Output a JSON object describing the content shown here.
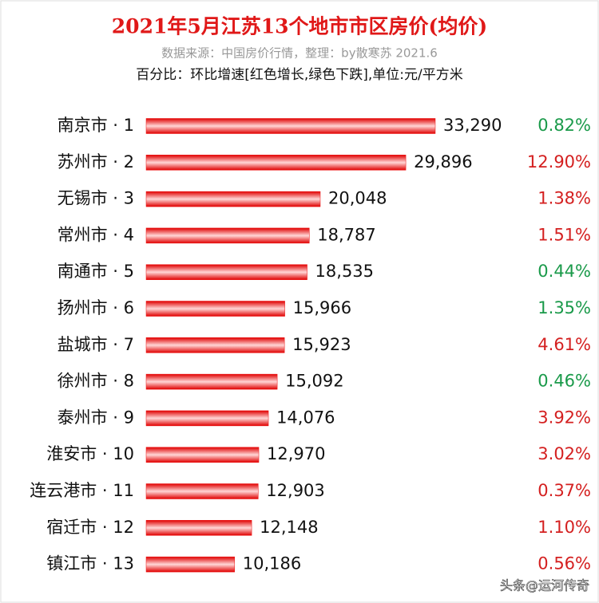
{
  "chart_data": {
    "type": "bar",
    "orientation": "horizontal",
    "title": "2021年5月江苏13个地市市区房价(均价)",
    "subtitle": "数据来源：中国房价行情，整理：by散寒苏  2021.6",
    "note": "百分比：环比增速[红色增长,绿色下跌],单位:元/平方米",
    "categories": [
      "南京市 · 1",
      "苏州市 · 2",
      "无锡市 · 3",
      "常州市 · 4",
      "南通市 · 5",
      "扬州市 · 6",
      "盐城市 · 7",
      "徐州市 · 8",
      "泰州市 · 9",
      "淮安市 · 10",
      "连云港市 · 11",
      "宿迁市 · 12",
      "镇江市 · 13"
    ],
    "color": "#ee1111",
    "values": [
      33290,
      29896,
      20048,
      18787,
      18535,
      15966,
      15923,
      15092,
      14076,
      12970,
      12903,
      12148,
      10186
    ],
    "value_labels": [
      "33,290",
      "29,896",
      "20,048",
      "18,787",
      "18,535",
      "15,966",
      "15,923",
      "15,092",
      "14,076",
      "12,970",
      "12,903",
      "12,148",
      "10,186"
    ],
    "change": {
      "values": [
        0.82,
        12.9,
        1.38,
        1.51,
        0.44,
        1.35,
        4.61,
        0.46,
        3.92,
        3.02,
        0.37,
        1.1,
        0.56
      ],
      "value_labels": [
        "0.82%",
        "12.90%",
        "1.38%",
        "1.51%",
        "0.44%",
        "1.35%",
        "4.61%",
        "0.46%",
        "3.92%",
        "3.02%",
        "0.37%",
        "1.10%",
        "0.56%"
      ],
      "colors": [
        "#1a9a4a",
        "#d42020",
        "#d42020",
        "#d42020",
        "#1a9a4a",
        "#1a9a4a",
        "#d42020",
        "#1a9a4a",
        "#d42020",
        "#d42020",
        "#d42020",
        "#d42020",
        "#d42020"
      ]
    },
    "watermark": "头条@运河传奇"
  }
}
